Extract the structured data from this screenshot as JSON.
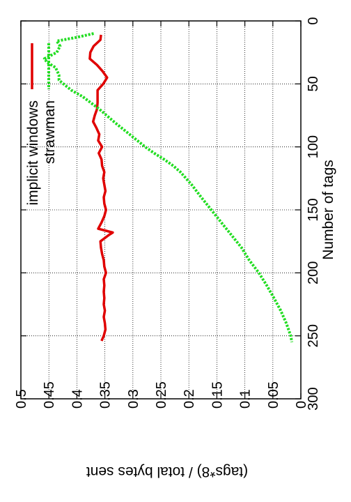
{
  "chart_data": {
    "type": "line",
    "rotated": "90deg-clockwise",
    "xlabel": "Number of tags",
    "ylabel": "(tags*8) / total bytes sent",
    "xlim": [
      0,
      300
    ],
    "ylim": [
      0,
      0.5
    ],
    "x_ticks": [
      "0",
      "50",
      "100",
      "150",
      "200",
      "250",
      "300"
    ],
    "y_ticks": [
      "0",
      "0.05",
      "0.1",
      "0.15",
      "0.2",
      "0.25",
      "0.3",
      "0.35",
      "0.4",
      "0.45",
      "0.5"
    ],
    "grid": true,
    "legend_position": "top-left",
    "series": [
      {
        "name": "implicit windows",
        "color": "#e00000",
        "dash": "solid",
        "points": [
          [
            11,
            0.357
          ],
          [
            15,
            0.358
          ],
          [
            20,
            0.37
          ],
          [
            25,
            0.376
          ],
          [
            30,
            0.377
          ],
          [
            35,
            0.364
          ],
          [
            40,
            0.354
          ],
          [
            45,
            0.346
          ],
          [
            50,
            0.353
          ],
          [
            55,
            0.363
          ],
          [
            60,
            0.363
          ],
          [
            65,
            0.363
          ],
          [
            70,
            0.364
          ],
          [
            75,
            0.368
          ],
          [
            80,
            0.371
          ],
          [
            85,
            0.365
          ],
          [
            90,
            0.36
          ],
          [
            95,
            0.362
          ],
          [
            100,
            0.355
          ],
          [
            105,
            0.361
          ],
          [
            110,
            0.356
          ],
          [
            115,
            0.355
          ],
          [
            120,
            0.351
          ],
          [
            125,
            0.353
          ],
          [
            130,
            0.351
          ],
          [
            135,
            0.349
          ],
          [
            140,
            0.352
          ],
          [
            145,
            0.351
          ],
          [
            150,
            0.348
          ],
          [
            155,
            0.351
          ],
          [
            160,
            0.356
          ],
          [
            165,
            0.362
          ],
          [
            168,
            0.336
          ],
          [
            170,
            0.343
          ],
          [
            175,
            0.358
          ],
          [
            180,
            0.357
          ],
          [
            185,
            0.355
          ],
          [
            190,
            0.352
          ],
          [
            195,
            0.351
          ],
          [
            200,
            0.348
          ],
          [
            205,
            0.352
          ],
          [
            210,
            0.351
          ],
          [
            215,
            0.352
          ],
          [
            220,
            0.351
          ],
          [
            225,
            0.352
          ],
          [
            230,
            0.35
          ],
          [
            235,
            0.352
          ],
          [
            240,
            0.35
          ],
          [
            245,
            0.349
          ],
          [
            250,
            0.352
          ],
          [
            254,
            0.356
          ]
        ]
      },
      {
        "name": "strawman",
        "color": "#22dd22",
        "dash": "dotted",
        "points": [
          [
            10,
            0.37
          ],
          [
            13,
            0.4
          ],
          [
            16,
            0.436
          ],
          [
            20,
            0.43
          ],
          [
            25,
            0.436
          ],
          [
            30,
            0.458
          ],
          [
            33,
            0.453
          ],
          [
            37,
            0.438
          ],
          [
            43,
            0.432
          ],
          [
            47,
            0.432
          ],
          [
            50,
            0.424
          ],
          [
            55,
            0.41
          ],
          [
            60,
            0.39
          ],
          [
            65,
            0.375
          ],
          [
            70,
            0.36
          ],
          [
            75,
            0.347
          ],
          [
            80,
            0.334
          ],
          [
            85,
            0.32
          ],
          [
            90,
            0.306
          ],
          [
            95,
            0.292
          ],
          [
            100,
            0.278
          ],
          [
            105,
            0.262
          ],
          [
            110,
            0.244
          ],
          [
            115,
            0.228
          ],
          [
            120,
            0.215
          ],
          [
            130,
            0.195
          ],
          [
            140,
            0.178
          ],
          [
            150,
            0.16
          ],
          [
            160,
            0.142
          ],
          [
            170,
            0.124
          ],
          [
            180,
            0.106
          ],
          [
            190,
            0.092
          ],
          [
            200,
            0.075
          ],
          [
            210,
            0.061
          ],
          [
            220,
            0.048
          ],
          [
            230,
            0.036
          ],
          [
            240,
            0.026
          ],
          [
            250,
            0.018
          ],
          [
            255,
            0.016
          ]
        ]
      }
    ]
  }
}
